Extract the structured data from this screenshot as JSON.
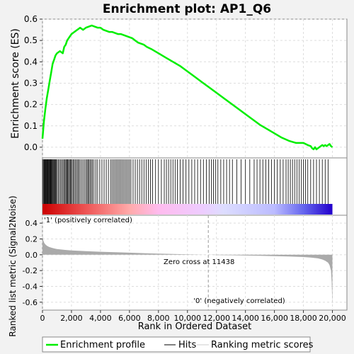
{
  "chart_data": {
    "type": "line",
    "title": "Enrichment plot: AP1_Q6",
    "x_label": "Rank in Ordered Dataset",
    "xlim": [
      0,
      21000
    ],
    "x_ticks": [
      0,
      2000,
      4000,
      6000,
      8000,
      10000,
      12000,
      14000,
      16000,
      18000,
      20000
    ],
    "x_tick_labels": [
      "0",
      "2,000",
      "4,000",
      "6,000",
      "8,000",
      "10,000",
      "12,000",
      "14,000",
      "16,000",
      "18,000",
      "20,000"
    ],
    "total_rank": 20000,
    "es_panel": {
      "y_label": "Enrichment score (ES)",
      "ylim": [
        -0.05,
        0.6
      ],
      "y_ticks": [
        0.0,
        0.1,
        0.2,
        0.3,
        0.4,
        0.5,
        0.6
      ],
      "y_tick_labels": [
        "0.0",
        "0.1",
        "0.2",
        "0.3",
        "0.4",
        "0.5",
        "0.6"
      ],
      "series_color": "#00ee00",
      "x": [
        0,
        100,
        200,
        300,
        400,
        500,
        600,
        700,
        800,
        900,
        1000,
        1200,
        1400,
        1500,
        1600,
        1700,
        1800,
        1900,
        2000,
        2200,
        2400,
        2600,
        2800,
        3000,
        3200,
        3400,
        3600,
        3800,
        4000,
        4200,
        4400,
        4600,
        4800,
        5000,
        5200,
        5400,
        5600,
        5800,
        6000,
        6200,
        6400,
        6600,
        6800,
        7000,
        7200,
        7500,
        8000,
        8500,
        9000,
        9500,
        10000,
        10500,
        11000,
        11500,
        12000,
        12500,
        13000,
        13500,
        14000,
        14500,
        15000,
        15500,
        16000,
        16500,
        17000,
        17500,
        18000,
        18300,
        18500,
        18600,
        18700,
        18800,
        18900,
        19000,
        19100,
        19200,
        19300,
        19400,
        19500,
        19600,
        19700,
        19800,
        19900,
        20000
      ],
      "y": [
        0.04,
        0.12,
        0.18,
        0.23,
        0.27,
        0.31,
        0.35,
        0.39,
        0.41,
        0.43,
        0.44,
        0.45,
        0.44,
        0.47,
        0.48,
        0.5,
        0.51,
        0.52,
        0.53,
        0.54,
        0.55,
        0.56,
        0.55,
        0.56,
        0.565,
        0.57,
        0.565,
        0.56,
        0.56,
        0.55,
        0.545,
        0.54,
        0.54,
        0.535,
        0.53,
        0.53,
        0.525,
        0.52,
        0.515,
        0.51,
        0.5,
        0.49,
        0.485,
        0.48,
        0.47,
        0.46,
        0.44,
        0.42,
        0.4,
        0.38,
        0.355,
        0.33,
        0.305,
        0.28,
        0.255,
        0.23,
        0.205,
        0.18,
        0.155,
        0.13,
        0.105,
        0.085,
        0.065,
        0.045,
        0.03,
        0.02,
        0.02,
        0.01,
        0.005,
        -0.005,
        -0.01,
        0.0,
        -0.01,
        -0.005,
        0.0,
        0.005,
        0.01,
        0.005,
        0.01,
        0.005,
        0.01,
        0.015,
        0.005,
        0.0
      ]
    },
    "hits": [
      10,
      60,
      110,
      150,
      190,
      230,
      270,
      300,
      340,
      380,
      420,
      460,
      500,
      540,
      580,
      620,
      660,
      700,
      750,
      800,
      850,
      900,
      960,
      1020,
      1100,
      1180,
      1260,
      1340,
      1420,
      1500,
      1560,
      1620,
      1680,
      1740,
      1800,
      1860,
      1920,
      1980,
      2050,
      2120,
      2200,
      2280,
      2360,
      2440,
      2520,
      2600,
      2700,
      2800,
      2900,
      3000,
      3080,
      3150,
      3220,
      3300,
      3380,
      3460,
      3560,
      3680,
      3800,
      3950,
      4100,
      4250,
      4400,
      4550,
      4700,
      4800,
      4900,
      5000,
      5100,
      5200,
      5300,
      5400,
      5500,
      5600,
      5700,
      5800,
      5900,
      6000,
      6100,
      6250,
      6400,
      6550,
      6700,
      6850,
      7000,
      7150,
      7300,
      7450,
      7600,
      7800,
      8000,
      8200,
      8400,
      8550,
      8700,
      8850,
      9000,
      9150,
      9300,
      9500,
      9700,
      9900,
      10100,
      10300,
      10500,
      10700,
      10900,
      11100,
      11300,
      11500,
      11650,
      11800,
      11950,
      12100,
      12300,
      12500,
      12700,
      12900,
      13100,
      13400,
      13700,
      14000,
      14300,
      14600,
      14800,
      15000,
      15200,
      15400,
      15600,
      15800,
      16000,
      16200,
      16400,
      16600,
      16800,
      16950,
      17100,
      17250,
      17400,
      17550,
      17700,
      17850,
      18000,
      18150,
      18300,
      18500,
      18700,
      18900,
      19100,
      19300,
      19500,
      19700
    ],
    "ranked_metric_panel": {
      "y_label": "Ranked list metric (Signal2Noise)",
      "ylim": [
        -0.7,
        0.5
      ],
      "y_ticks": [
        -0.6,
        -0.4,
        -0.2,
        0.0,
        0.2,
        0.4
      ],
      "y_tick_labels": [
        "-0.6",
        "-0.4",
        "-0.2",
        "0.0",
        "0.2",
        "0.4"
      ],
      "fill_color": "#aaaaaa",
      "x": [
        0,
        20,
        60,
        120,
        200,
        300,
        450,
        600,
        800,
        1000,
        1500,
        2000,
        3000,
        4000,
        5000,
        6000,
        7000,
        8000,
        9000,
        10000,
        11000,
        11438,
        12000,
        13000,
        14000,
        15000,
        16000,
        17000,
        18000,
        18500,
        19000,
        19300,
        19500,
        19700,
        19800,
        19900,
        19950,
        20000
      ],
      "y": [
        0.28,
        0.22,
        0.18,
        0.15,
        0.13,
        0.115,
        0.1,
        0.09,
        0.08,
        0.072,
        0.062,
        0.055,
        0.045,
        0.038,
        0.032,
        0.026,
        0.02,
        0.015,
        0.01,
        0.005,
        0.002,
        0.0,
        -0.003,
        -0.006,
        -0.01,
        -0.013,
        -0.017,
        -0.021,
        -0.028,
        -0.035,
        -0.045,
        -0.06,
        -0.075,
        -0.1,
        -0.13,
        -0.2,
        -0.35,
        -0.65
      ],
      "zero_cross_label": "Zero cross at 11438",
      "zero_cross": 11438,
      "positive_label": "'1' (positively correlated)",
      "negative_label": "'0' (negatively correlated)",
      "positive_label_color": "#cc0000",
      "negative_label_color": "#0000cc"
    },
    "gradient_bar": {
      "stops": [
        {
          "rank": 0,
          "color": "#cc0000"
        },
        {
          "rank": 3000,
          "color": "#ee5555"
        },
        {
          "rank": 6000,
          "color": "#ffaaaa"
        },
        {
          "rank": 8000,
          "color": "#ffbbee"
        },
        {
          "rank": 11000,
          "color": "#eeccff"
        },
        {
          "rank": 12500,
          "color": "#ddddff"
        },
        {
          "rank": 16000,
          "color": "#bbbbff"
        },
        {
          "rank": 18000,
          "color": "#6666ee"
        },
        {
          "rank": 20000,
          "color": "#2200cc"
        }
      ]
    },
    "legend": {
      "placement": "bottom",
      "items": [
        {
          "label": "Enrichment profile",
          "color": "#00ee00",
          "kind": "thick-line"
        },
        {
          "label": "Hits",
          "color": "#000000",
          "kind": "line"
        },
        {
          "label": "Ranking metric scores",
          "color": "#cccccc",
          "kind": "line"
        }
      ]
    }
  }
}
